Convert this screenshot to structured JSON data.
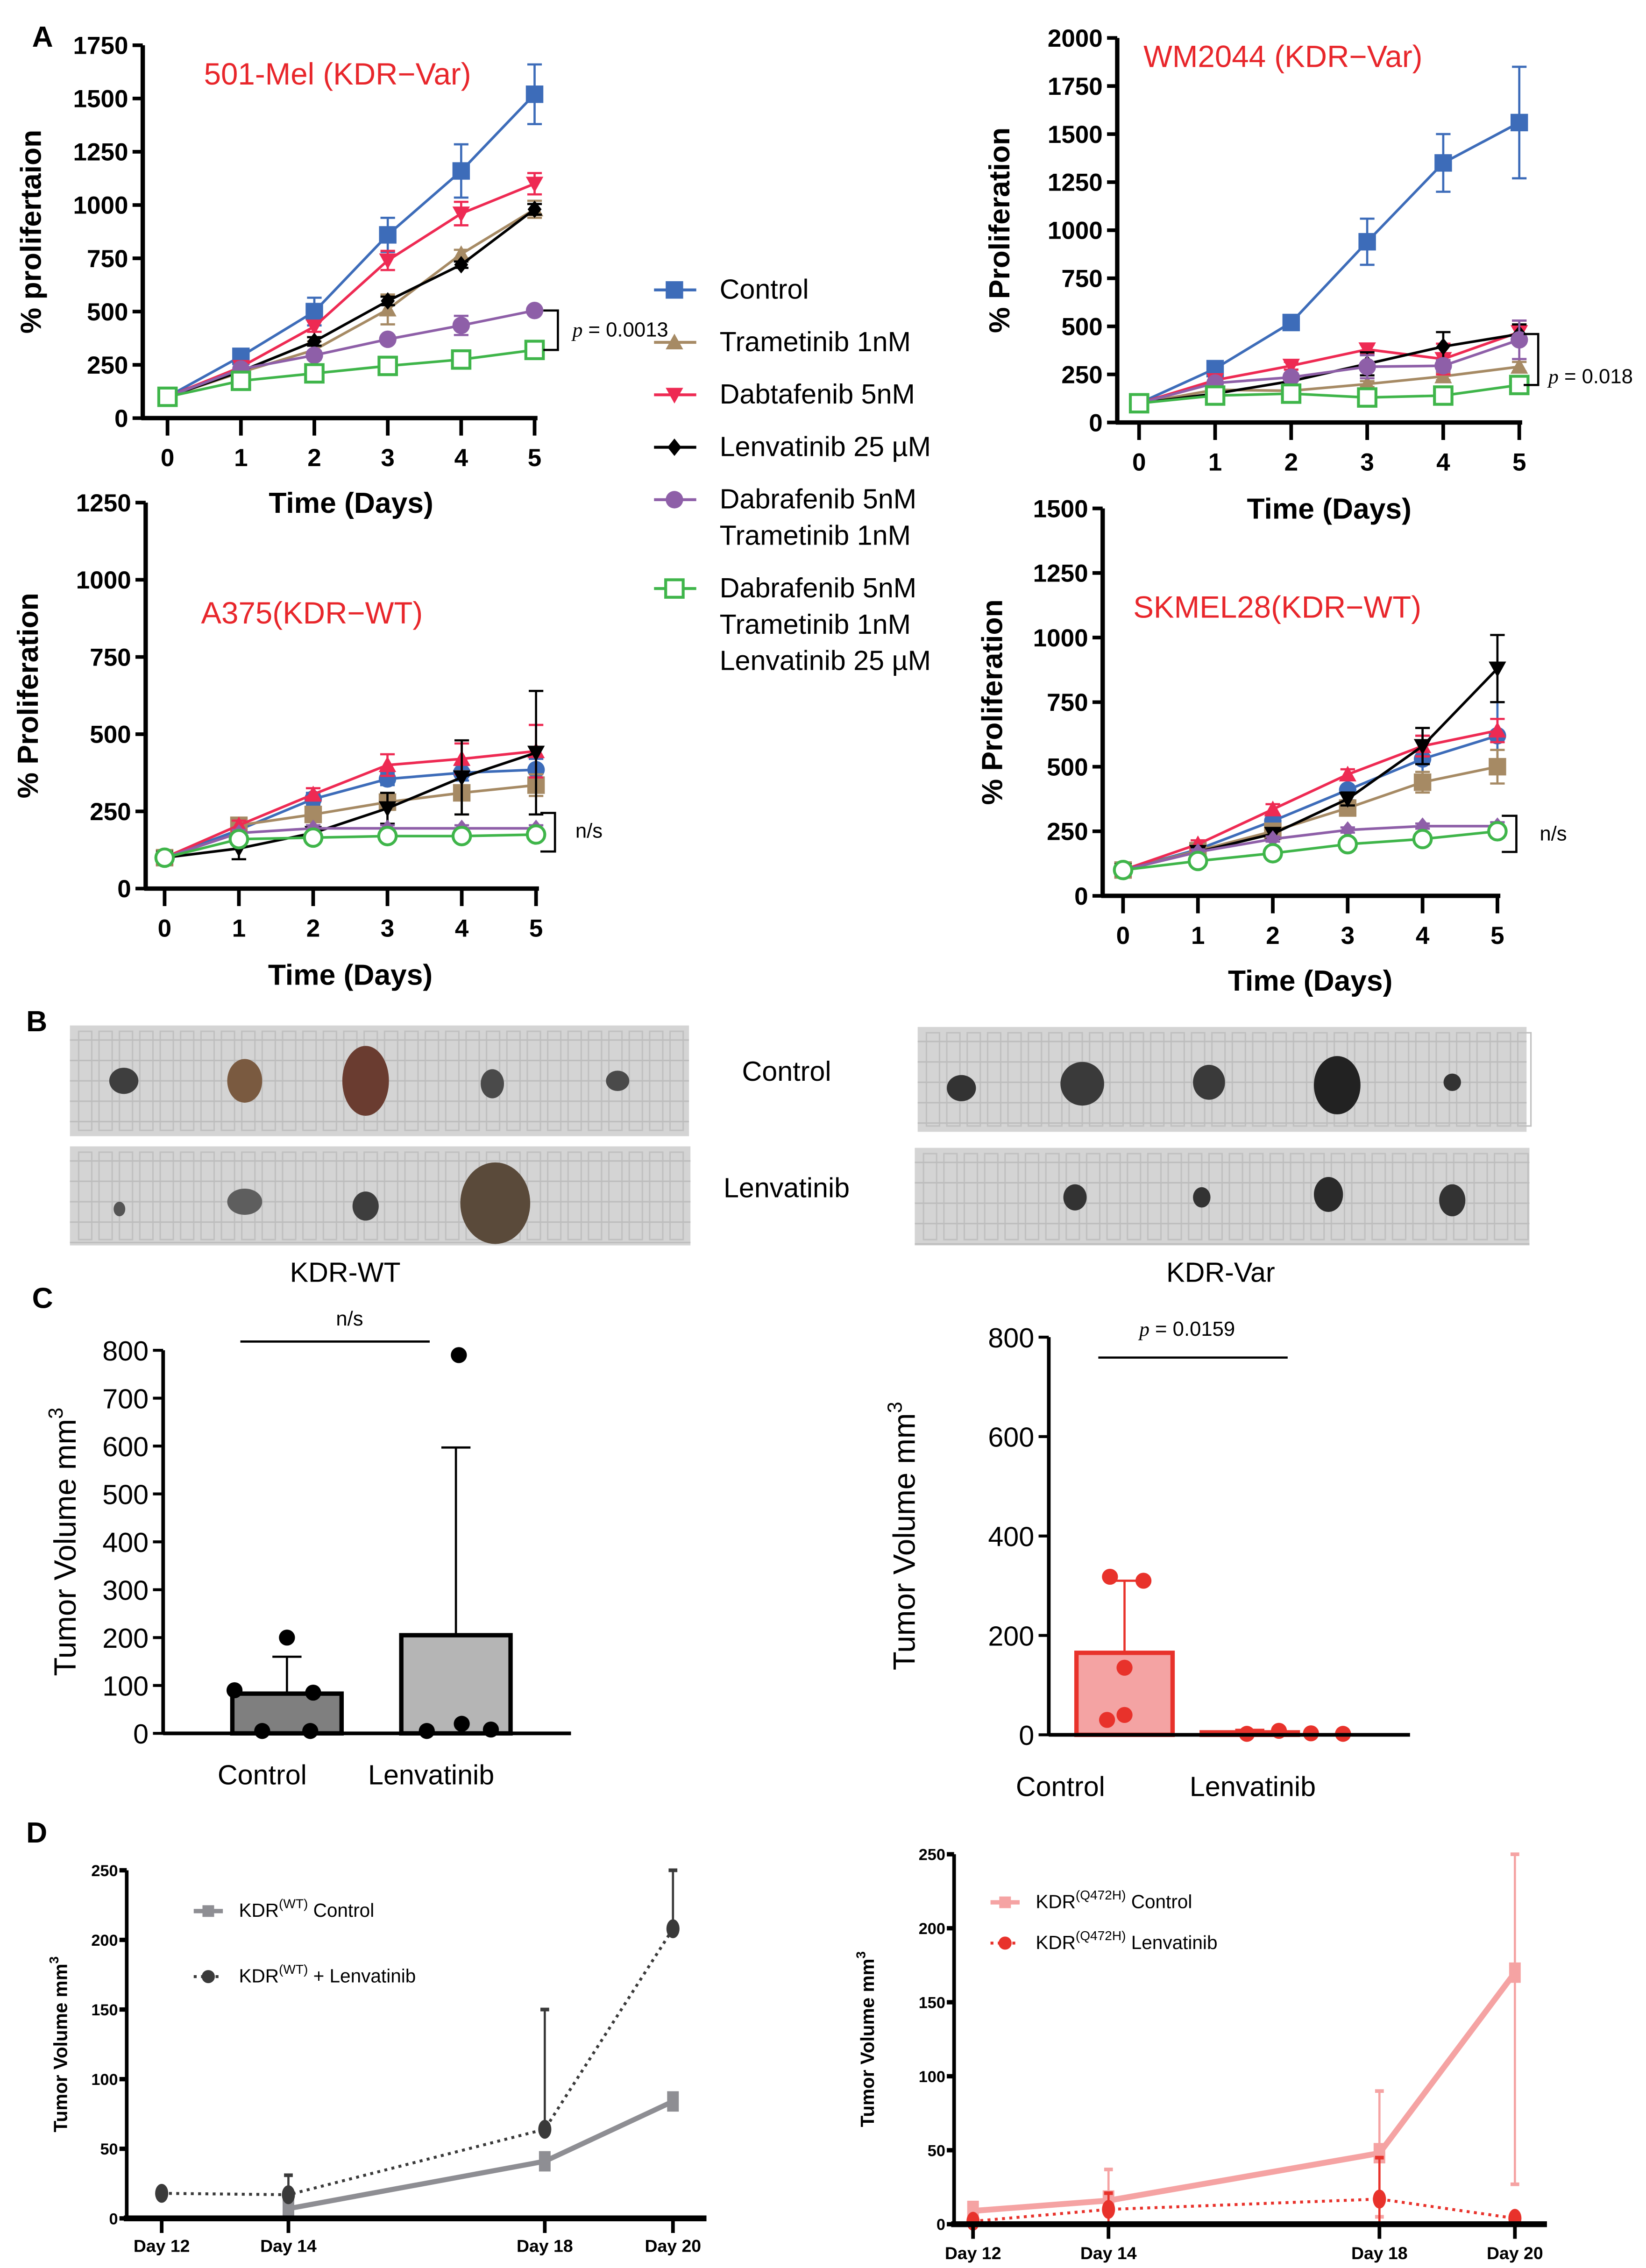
{
  "panel_labels": [
    "A",
    "B",
    "C",
    "D"
  ],
  "legend_a": {
    "items": [
      {
        "lines": [
          "Control"
        ],
        "color": "#3d6cb9",
        "marker": "square"
      },
      {
        "lines": [
          "Trametinib 1nM"
        ],
        "color": "#a68a64",
        "marker": "triangle-up"
      },
      {
        "lines": [
          "Dabtafenib 5nM"
        ],
        "color": "#ee2a53",
        "marker": "triangle-down"
      },
      {
        "lines": [
          "Lenvatinib 25 µM"
        ],
        "color": "#000000",
        "marker": "diamond"
      },
      {
        "lines": [
          "Dabrafenib 5nM",
          "Trametinib 1nM"
        ],
        "color": "#8e5fa8",
        "marker": "circle"
      },
      {
        "lines": [
          "Dabrafenib 5nM",
          "Trametinib 1nM",
          "Lenvatinib 25 µM"
        ],
        "color": "#3fb54a",
        "marker": "open-square"
      }
    ]
  },
  "panel_b": {
    "row_labels": [
      "Control",
      "Lenvatinib"
    ],
    "group_labels": [
      "KDR-WT",
      "KDR-Var"
    ],
    "group_label_colors": [
      "#000000",
      "#e8262b"
    ]
  },
  "chart_data": [
    {
      "type": "line",
      "title": "501-Mel (KDR−Var)",
      "title_color": "#e8262b",
      "xlabel": "Time (Days)",
      "ylabel": "% prolifertaion",
      "x": [
        0,
        1,
        2,
        3,
        4,
        5
      ],
      "ylim": [
        0,
        1750
      ],
      "yticks": [
        0,
        250,
        500,
        750,
        1000,
        1250,
        1500,
        1750
      ],
      "series": [
        {
          "name": "Control",
          "color": "#3d6cb9",
          "marker": "square",
          "values": [
            100,
            290,
            500,
            860,
            1160,
            1520
          ],
          "error": [
            0,
            20,
            65,
            80,
            125,
            140
          ]
        },
        {
          "name": "Trametinib 1nM",
          "color": "#a68a64",
          "marker": "triangle-up",
          "values": [
            100,
            215,
            320,
            510,
            770,
            980
          ],
          "error": [
            0,
            15,
            40,
            70,
            20,
            40
          ]
        },
        {
          "name": "Dabtafenib 5nM",
          "color": "#ee2a53",
          "marker": "triangle-down",
          "values": [
            100,
            240,
            430,
            740,
            960,
            1100
          ],
          "error": [
            0,
            15,
            25,
            45,
            55,
            50
          ]
        },
        {
          "name": "Lenvatinib 25 µM",
          "color": "#000000",
          "marker": "diamond",
          "values": [
            100,
            220,
            360,
            550,
            720,
            980
          ],
          "error": [
            0,
            10,
            20,
            20,
            15,
            25
          ]
        },
        {
          "name": "Dabrafenib 5nM + Trametinib 1nM",
          "color": "#8e5fa8",
          "marker": "circle",
          "values": [
            100,
            230,
            295,
            370,
            435,
            505
          ],
          "error": [
            0,
            15,
            20,
            15,
            45,
            15
          ]
        },
        {
          "name": "Dabrafenib 5nM + Trametinib 1nM + Lenvatinib 25 µM",
          "color": "#3fb54a",
          "marker": "open-square",
          "values": [
            100,
            175,
            210,
            245,
            275,
            320
          ],
          "error": [
            0,
            15,
            20,
            20,
            20,
            20
          ]
        }
      ],
      "annotation": {
        "p_symbol": "p",
        "text": " = 0.0013",
        "bracket": [
          320,
          505
        ]
      }
    },
    {
      "type": "line",
      "title": "WM2044 (KDR−Var)",
      "title_color": "#e8262b",
      "xlabel": "Time (Days)",
      "ylabel": "% Proliferation",
      "x": [
        0,
        1,
        2,
        3,
        4,
        5
      ],
      "ylim": [
        0,
        2000
      ],
      "yticks": [
        0,
        250,
        500,
        750,
        1000,
        1250,
        1500,
        1750,
        2000
      ],
      "series": [
        {
          "name": "Control",
          "color": "#3d6cb9",
          "marker": "square",
          "values": [
            100,
            280,
            520,
            940,
            1350,
            1560
          ],
          "error": [
            0,
            20,
            30,
            120,
            150,
            290
          ]
        },
        {
          "name": "Trametinib 1nM",
          "color": "#a68a64",
          "marker": "triangle-up",
          "values": [
            100,
            170,
            165,
            200,
            240,
            290
          ],
          "error": [
            0,
            10,
            15,
            15,
            20,
            25
          ]
        },
        {
          "name": "Dabtafenib 5nM",
          "color": "#ee2a53",
          "marker": "triangle-down",
          "values": [
            100,
            220,
            295,
            380,
            330,
            470
          ],
          "error": [
            0,
            15,
            20,
            25,
            80,
            60
          ]
        },
        {
          "name": "Lenvatinib 25 µM",
          "color": "#000000",
          "marker": "diamond",
          "values": [
            100,
            150,
            215,
            305,
            395,
            460
          ],
          "error": [
            0,
            15,
            20,
            60,
            75,
            50
          ]
        },
        {
          "name": "Dabrafenib 5nM + Trametinib 1nM",
          "color": "#8e5fa8",
          "marker": "circle",
          "values": [
            100,
            205,
            235,
            290,
            295,
            430
          ],
          "error": [
            0,
            15,
            20,
            60,
            30,
            100
          ]
        },
        {
          "name": "Dabrafenib 5nM + Trametinib 1nM + Lenvatinib 25 µM",
          "color": "#3fb54a",
          "marker": "open-square",
          "values": [
            100,
            140,
            150,
            130,
            140,
            195
          ],
          "error": [
            0,
            10,
            15,
            15,
            25,
            20
          ]
        }
      ],
      "annotation": {
        "p_symbol": "p",
        "text": " = 0.018",
        "bracket": [
          195,
          460
        ]
      }
    },
    {
      "type": "line",
      "title": "A375(KDR−WT)",
      "title_color": "#e8262b",
      "xlabel": "Time (Days)",
      "ylabel": "% Proliferation",
      "x": [
        0,
        1,
        2,
        3,
        4,
        5
      ],
      "ylim": [
        0,
        1250
      ],
      "yticks": [
        0,
        250,
        500,
        750,
        1000,
        1250
      ],
      "series": [
        {
          "name": "Control",
          "color": "#3d6cb9",
          "marker": "circle",
          "values": [
            100,
            190,
            290,
            355,
            375,
            385
          ],
          "error": [
            0,
            15,
            20,
            20,
            25,
            35
          ]
        },
        {
          "name": "Trametinib 1nM",
          "color": "#a68a64",
          "marker": "square",
          "values": [
            100,
            205,
            240,
            280,
            310,
            335
          ],
          "error": [
            0,
            15,
            25,
            25,
            70,
            35
          ]
        },
        {
          "name": "Dabtafenib 5nM",
          "color": "#ee2a53",
          "marker": "triangle-up",
          "values": [
            100,
            205,
            305,
            400,
            420,
            445
          ],
          "error": [
            0,
            15,
            20,
            35,
            50,
            85
          ]
        },
        {
          "name": "Lenvatinib 25 µM",
          "color": "#000000",
          "marker": "triangle-down",
          "values": [
            100,
            130,
            180,
            260,
            360,
            440
          ],
          "error": [
            0,
            35,
            15,
            50,
            120,
            200
          ]
        },
        {
          "name": "Dabrafenib 5nM + Trametinib 1nM",
          "color": "#8e5fa8",
          "marker": "diamond",
          "values": [
            100,
            180,
            195,
            195,
            195,
            195
          ],
          "error": [
            0,
            10,
            10,
            10,
            10,
            10
          ]
        },
        {
          "name": "Dabrafenib 5nM + Trametinib 1nM + Lenvatinib 25 µM",
          "color": "#3fb54a",
          "marker": "open-circle",
          "values": [
            100,
            160,
            165,
            170,
            170,
            175
          ],
          "error": [
            0,
            10,
            10,
            10,
            10,
            10
          ]
        }
      ],
      "annotation": {
        "p_symbol": "",
        "text": "n/s",
        "bracket": [
          120,
          245
        ]
      }
    },
    {
      "type": "line",
      "title": "SKMEL28(KDR−WT)",
      "title_color": "#e8262b",
      "xlabel": "Time (Days)",
      "ylabel": "% Proliferation",
      "x": [
        0,
        1,
        2,
        3,
        4,
        5
      ],
      "ylim": [
        0,
        1500
      ],
      "yticks": [
        0,
        250,
        500,
        750,
        1000,
        1250,
        1500
      ],
      "series": [
        {
          "name": "Control",
          "color": "#3d6cb9",
          "marker": "circle",
          "values": [
            100,
            180,
            290,
            410,
            530,
            620
          ],
          "error": [
            0,
            15,
            25,
            40,
            90,
            130
          ]
        },
        {
          "name": "Trametinib 1nM",
          "color": "#a68a64",
          "marker": "square",
          "values": [
            100,
            175,
            250,
            340,
            440,
            500
          ],
          "error": [
            0,
            15,
            20,
            25,
            40,
            65
          ]
        },
        {
          "name": "Dabtafenib 5nM",
          "color": "#ee2a53",
          "marker": "triangle-up",
          "values": [
            100,
            200,
            335,
            470,
            580,
            640
          ],
          "error": [
            0,
            15,
            20,
            20,
            40,
            45
          ]
        },
        {
          "name": "Lenvatinib 25 µM",
          "color": "#000000",
          "marker": "triangle-down",
          "values": [
            100,
            170,
            240,
            375,
            580,
            880
          ],
          "error": [
            0,
            15,
            20,
            25,
            70,
            130
          ]
        },
        {
          "name": "Dabrafenib 5nM + Trametinib 1nM",
          "color": "#8e5fa8",
          "marker": "diamond",
          "values": [
            100,
            170,
            220,
            255,
            270,
            270
          ],
          "error": [
            0,
            10,
            10,
            10,
            10,
            15
          ]
        },
        {
          "name": "Dabrafenib 5nM + Trametinib 1nM + Lenvatinib 25 µM",
          "color": "#3fb54a",
          "marker": "open-circle",
          "values": [
            100,
            135,
            165,
            200,
            220,
            250
          ],
          "error": [
            0,
            10,
            15,
            20,
            15,
            25
          ]
        }
      ],
      "annotation": {
        "p_symbol": "",
        "text": "n/s",
        "bracket": [
          170,
          310
        ]
      }
    },
    {
      "type": "bar",
      "ylabel": "Tumor Volume mm",
      "ylabel_sup": "3",
      "categories": [
        "Control",
        "Lenvatinib"
      ],
      "ylim": [
        0,
        800
      ],
      "yticks": [
        0,
        100,
        200,
        300,
        400,
        500,
        600,
        700,
        800
      ],
      "values": [
        83,
        205
      ],
      "err_high": [
        160,
        597
      ],
      "fill": [
        "#7f7f7f",
        "#b5b5b5"
      ],
      "stroke": [
        "#000000",
        "#000000"
      ],
      "dot_color": "#000000",
      "points": [
        [
          200,
          90,
          85,
          5,
          5
        ],
        [
          790,
          5,
          20,
          8
        ]
      ],
      "annotation": {
        "p_symbol": "",
        "text": "n/s"
      }
    },
    {
      "type": "bar",
      "ylabel": "Tumor Volume mm",
      "ylabel_sup": "3",
      "categories": [
        "Control",
        "Lenvatinib"
      ],
      "ylim": [
        0,
        800
      ],
      "yticks": [
        0,
        200,
        400,
        600,
        800
      ],
      "values": [
        165,
        5
      ],
      "err_high": [
        310,
        10
      ],
      "fill": [
        "#f4a3a3",
        "#f4a3a3"
      ],
      "stroke": [
        "#e8322b",
        "#e8322b"
      ],
      "dot_color": "#e8322b",
      "points": [
        [
          318,
          310,
          135,
          40,
          30
        ],
        [
          2,
          8,
          3,
          2
        ]
      ],
      "annotation": {
        "p_symbol": "p",
        "text": " = 0.0159"
      }
    },
    {
      "type": "line",
      "ylabel": "Tumor Volume mm",
      "ylabel_sup": "3",
      "x": [
        "Day 12",
        "Day 14",
        "Day 18",
        "Day 20"
      ],
      "ylim": [
        0,
        250
      ],
      "yticks": [
        0,
        50,
        100,
        150,
        200,
        250
      ],
      "series": [
        {
          "legend": {
            "pre": "KDR",
            "sup": "(WT)",
            "post": " Control"
          },
          "color": "#8e8e93",
          "marker": "square",
          "dash": false,
          "values": [
            null,
            7,
            41,
            84
          ],
          "err_high": [
            null,
            7,
            41,
            84
          ]
        },
        {
          "legend": {
            "pre": "KDR",
            "sup": "(WT)",
            "post": " + Lenvatinib"
          },
          "color": "#3a3a3a",
          "marker": "circle",
          "dash": true,
          "values": [
            18,
            17,
            64,
            208
          ],
          "err_high": [
            18,
            31,
            150,
            250
          ]
        }
      ]
    },
    {
      "type": "line",
      "ylabel": "Tumor Volume mm",
      "ylabel_sup": "3",
      "x": [
        "Day 12",
        "Day 14",
        "Day 18",
        "Day 20"
      ],
      "ylim": [
        0,
        250
      ],
      "yticks": [
        0,
        50,
        100,
        150,
        200,
        250
      ],
      "series": [
        {
          "legend": {
            "pre": "KDR",
            "sup": "(Q472H)",
            "post": "  Control"
          },
          "color": "#f5a3a3",
          "marker": "square",
          "dash": false,
          "values": [
            9,
            16,
            48,
            170
          ],
          "err_high": [
            9,
            37,
            90,
            250
          ],
          "err_low": [
            9,
            16,
            5,
            27
          ]
        },
        {
          "legend": {
            "pre": "KDR",
            "sup": "(Q472H)",
            "post": "  Lenvatinib"
          },
          "color": "#e8322b",
          "marker": "circle",
          "dash": true,
          "values": [
            2,
            10,
            17,
            4
          ],
          "err_high": [
            2,
            21,
            45,
            4
          ],
          "err_low": [
            0,
            0,
            0,
            4
          ]
        }
      ]
    }
  ]
}
